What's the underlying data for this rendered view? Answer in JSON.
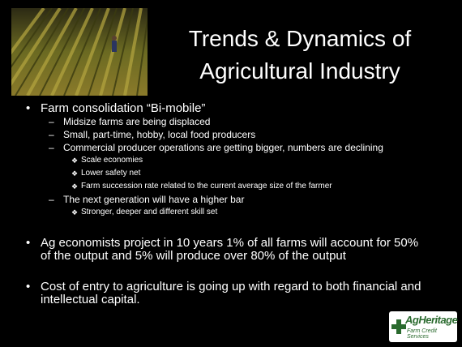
{
  "title": "Trends & Dynamics of Agricultural Industry",
  "bullets": [
    {
      "text": "Farm consolidation “Bi-mobile”",
      "items": [
        {
          "text": "Midsize farms are being displaced",
          "items": []
        },
        {
          "text": "Small, part-time, hobby, local food producers",
          "items": []
        },
        {
          "text": "Commercial producer operations are getting bigger, numbers are declining",
          "items": [
            "Scale economies",
            "Lower safety net",
            "Farm succession rate related to the current average size of the farmer"
          ]
        },
        {
          "text": "The next generation will have a higher bar",
          "items": [
            "Stronger, deeper and different skill set"
          ]
        }
      ]
    },
    {
      "text": "Ag  economists project in 10 years 1% of all farms will account for 50% of the output and 5% will produce over 80% of the output",
      "items": []
    },
    {
      "text": "Cost of entry to agriculture is going up with regard to both financial and intellectual capital.",
      "items": []
    }
  ],
  "logo": {
    "name": "AgHeritage",
    "tagline": "Farm Credit Services"
  }
}
